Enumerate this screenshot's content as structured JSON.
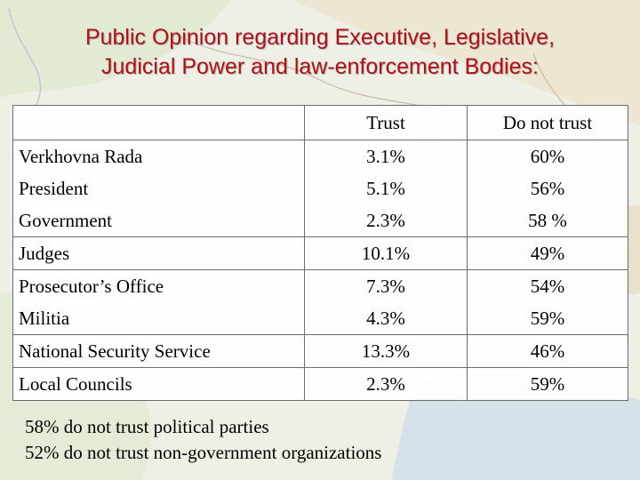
{
  "title": {
    "line1": "Public Opinion regarding Executive, Legislative,",
    "line2": "Judicial Power and law-enforcement Bodies:"
  },
  "colors": {
    "title": "#b0101a",
    "border": "#6a6a6a",
    "map_land": "#e8ecd6",
    "map_water": "#cfdde6"
  },
  "table": {
    "headers": {
      "corner": "",
      "trust": "Trust",
      "do_not_trust": "Do not trust"
    },
    "rows": [
      {
        "name": "Verkhovna Rada",
        "trust": "3.1%",
        "do_not_trust": "60%"
      },
      {
        "name": "President",
        "trust": "5.1%",
        "do_not_trust": "56%"
      },
      {
        "name": "Government",
        "trust": "2.3%",
        "do_not_trust": "58 %"
      },
      {
        "name": "Judges",
        "trust": "10.1%",
        "do_not_trust": "49%"
      },
      {
        "name": "Prosecutor’s Office",
        "trust": "7.3%",
        "do_not_trust": "54%"
      },
      {
        "name": "Militia",
        "trust": "4.3%",
        "do_not_trust": "59%"
      },
      {
        "name": "National Security Service",
        "trust": "13.3%",
        "do_not_trust": "46%"
      },
      {
        "name": "Local Councils",
        "trust": "2.3%",
        "do_not_trust": "59%"
      }
    ]
  },
  "notes": [
    "58% do not trust political parties",
    "52% do not trust non-government organizations"
  ]
}
